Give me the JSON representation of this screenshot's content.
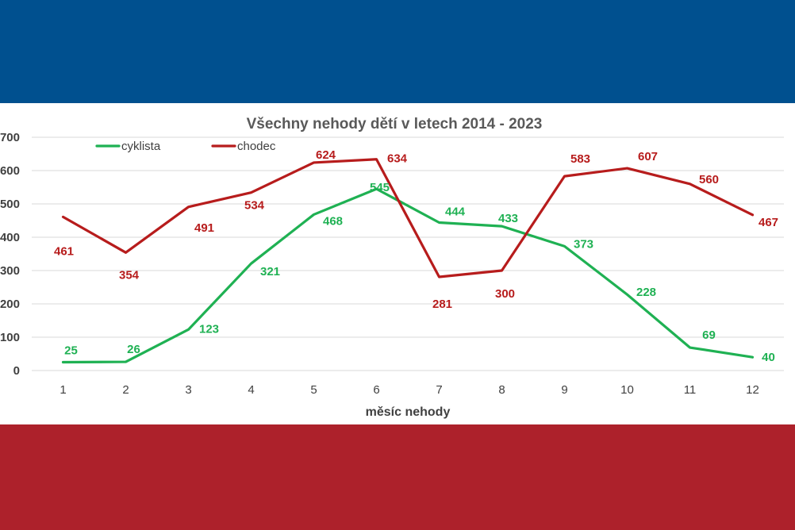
{
  "colors": {
    "band_top": "#00508f",
    "band_bottom": "#ad212b",
    "cyklista": "#1fb153",
    "chodec": "#b71c1c",
    "grid": "#d9d9d9"
  },
  "chart_data": {
    "type": "line",
    "title": "Všechny nehody dětí v letech 2014 - 2023",
    "xlabel": "měsíc nehody",
    "ylabel": "",
    "categories": [
      "1",
      "2",
      "3",
      "4",
      "5",
      "6",
      "7",
      "8",
      "9",
      "10",
      "11",
      "12"
    ],
    "ylim": [
      0,
      700
    ],
    "yticks": [
      "0",
      "100",
      "200",
      "300",
      "400",
      "500",
      "600",
      "700"
    ],
    "grid": "horizontal",
    "legend_position": "top-left",
    "series": [
      {
        "name": "cyklista",
        "color": "#1fb153",
        "values": [
          25,
          26,
          123,
          321,
          468,
          545,
          444,
          433,
          373,
          228,
          69,
          40
        ]
      },
      {
        "name": "chodec",
        "color": "#b71c1c",
        "values": [
          461,
          354,
          491,
          534,
          624,
          634,
          281,
          300,
          583,
          607,
          560,
          467
        ]
      }
    ]
  }
}
